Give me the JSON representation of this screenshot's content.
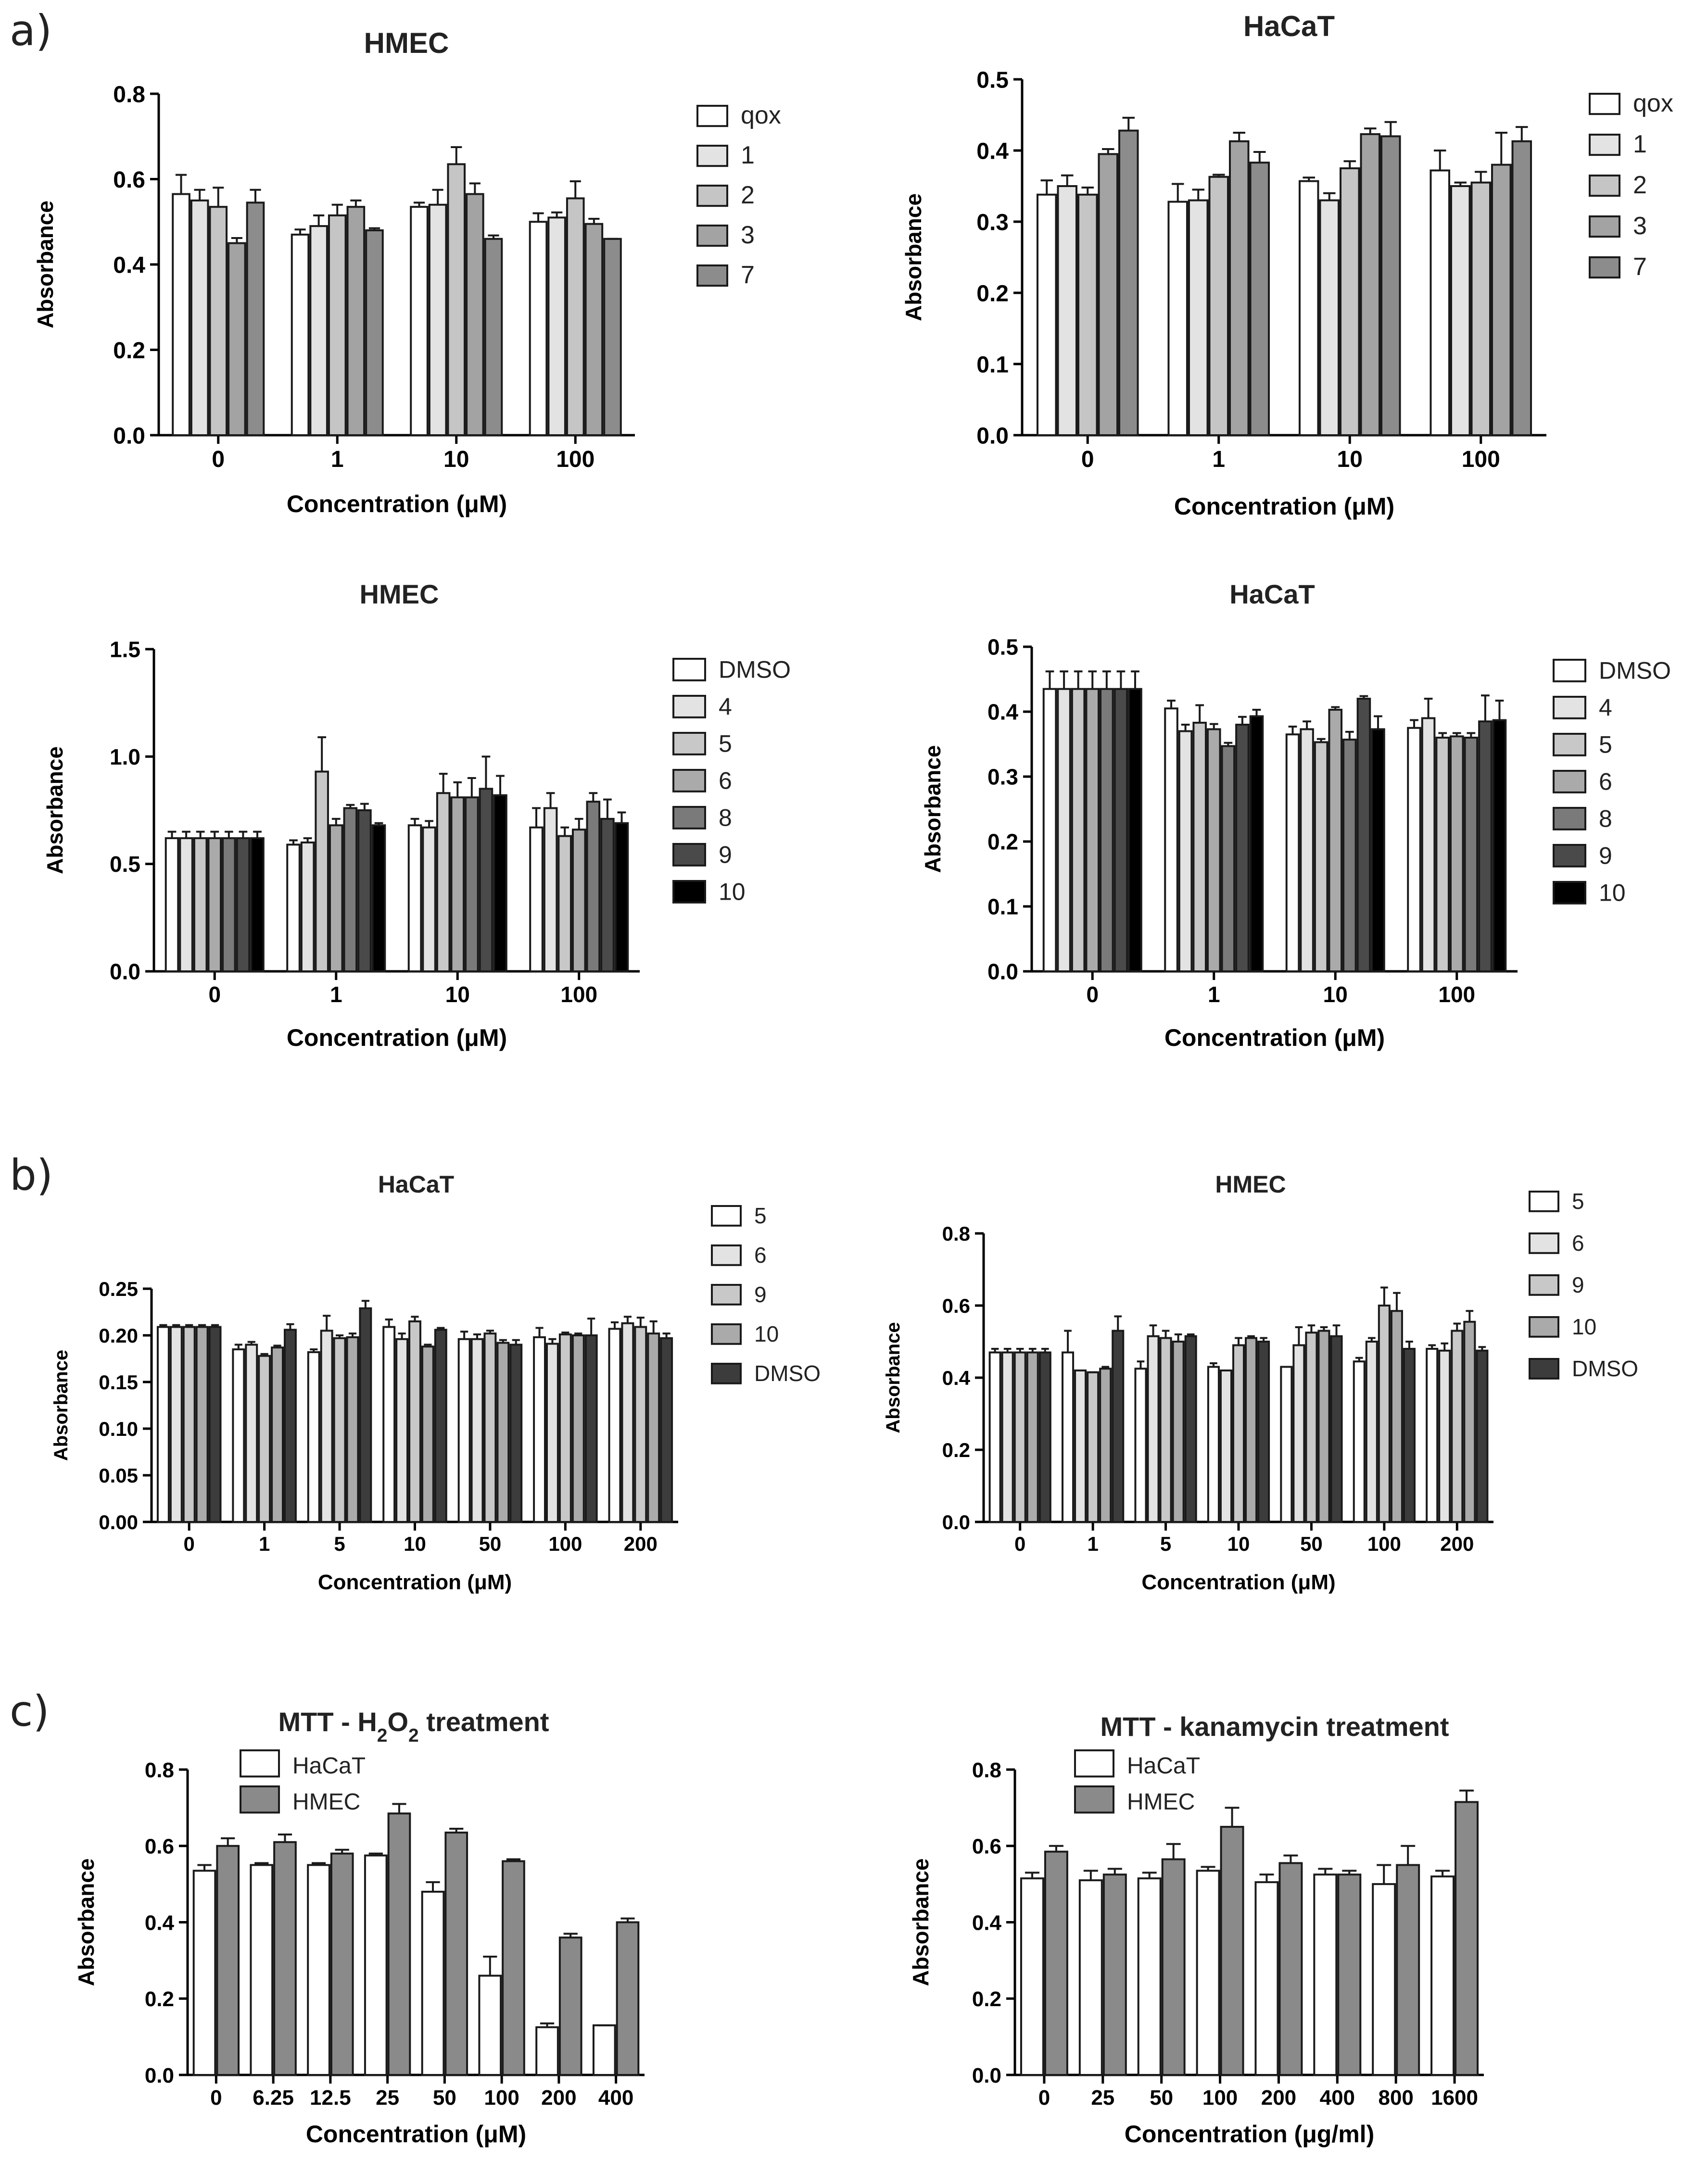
{
  "panel_labels": [
    "a)",
    "b)",
    "c)"
  ],
  "colors": {
    "qox": "#ffffff",
    "c1": "#e3e3e3",
    "c2": "#c5c5c5",
    "c3": "#a3a3a3",
    "c7": "#8c8c8c",
    "dmso": "#ffffff",
    "c4": "#e3e3e3",
    "c5": "#c8c8c8",
    "c6": "#aaaaaa",
    "c8": "#7a7a7a",
    "c9": "#4a4a4a",
    "c10": "#000000",
    "hacat": "#ffffff",
    "hmec": "#8a8a8a",
    "dark": "#3c3c3c"
  },
  "chart_data": [
    {
      "type": "bar",
      "title": "HMEC",
      "xlabel": "Concentration (μM)",
      "ylabel": "Absorbance",
      "categories": [
        "0",
        "1",
        "10",
        "100"
      ],
      "ylim": [
        0,
        0.8
      ],
      "yticks": [
        "0.0",
        "0.2",
        "0.4",
        "0.6",
        "0.8"
      ],
      "legend_position": "right",
      "series": [
        {
          "name": "qox",
          "color": "#ffffff",
          "values": [
            0.565,
            0.47,
            0.535,
            0.5
          ],
          "errors": [
            0.045,
            0.012,
            0.01,
            0.02
          ]
        },
        {
          "name": "1",
          "color": "#e3e3e3",
          "values": [
            0.55,
            0.49,
            0.54,
            0.51
          ],
          "errors": [
            0.025,
            0.025,
            0.035,
            0.012
          ]
        },
        {
          "name": "2",
          "color": "#c5c5c5",
          "values": [
            0.535,
            0.515,
            0.635,
            0.555
          ],
          "errors": [
            0.045,
            0.025,
            0.04,
            0.04
          ]
        },
        {
          "name": "3",
          "color": "#a3a3a3",
          "values": [
            0.45,
            0.535,
            0.565,
            0.495
          ],
          "errors": [
            0.012,
            0.015,
            0.025,
            0.012
          ]
        },
        {
          "name": "7",
          "color": "#8c8c8c",
          "values": [
            0.545,
            0.48,
            0.46,
            0.46
          ],
          "errors": [
            0.03,
            0.005,
            0.008,
            0
          ]
        }
      ]
    },
    {
      "type": "bar",
      "title": "HaCaT",
      "xlabel": "Concentration (μM)",
      "ylabel": "Absorbance",
      "categories": [
        "0",
        "1",
        "10",
        "100"
      ],
      "ylim": [
        0,
        0.5
      ],
      "yticks": [
        "0.0",
        "0.1",
        "0.2",
        "0.3",
        "0.4",
        "0.5"
      ],
      "legend_position": "right",
      "series": [
        {
          "name": "qox",
          "color": "#ffffff",
          "values": [
            0.338,
            0.328,
            0.357,
            0.372
          ],
          "errors": [
            0.02,
            0.025,
            0.005,
            0.028
          ]
        },
        {
          "name": "1",
          "color": "#e3e3e3",
          "values": [
            0.35,
            0.33,
            0.33,
            0.35
          ],
          "errors": [
            0.015,
            0.015,
            0.01,
            0.005
          ]
        },
        {
          "name": "2",
          "color": "#c5c5c5",
          "values": [
            0.338,
            0.363,
            0.375,
            0.355
          ],
          "errors": [
            0.01,
            0.003,
            0.01,
            0.015
          ]
        },
        {
          "name": "3",
          "color": "#a3a3a3",
          "values": [
            0.395,
            0.413,
            0.423,
            0.38
          ],
          "errors": [
            0.007,
            0.012,
            0.008,
            0.045
          ]
        },
        {
          "name": "7",
          "color": "#8c8c8c",
          "values": [
            0.428,
            0.383,
            0.42,
            0.413
          ],
          "errors": [
            0.018,
            0.015,
            0.02,
            0.02
          ]
        }
      ]
    },
    {
      "type": "bar",
      "title": "HMEC",
      "xlabel": "Concentration (μM)",
      "ylabel": "Absorbance",
      "categories": [
        "0",
        "1",
        "10",
        "100"
      ],
      "ylim": [
        0,
        1.5
      ],
      "yticks": [
        "0.0",
        "0.5",
        "1.0",
        "1.5"
      ],
      "legend_position": "right",
      "series": [
        {
          "name": "DMSO",
          "color": "#ffffff",
          "values": [
            0.62,
            0.59,
            0.68,
            0.67
          ],
          "errors": [
            0.03,
            0.02,
            0.03,
            0.09
          ]
        },
        {
          "name": "4",
          "color": "#e3e3e3",
          "values": [
            0.62,
            0.6,
            0.67,
            0.76
          ],
          "errors": [
            0.03,
            0.02,
            0.03,
            0.07
          ]
        },
        {
          "name": "5",
          "color": "#c8c8c8",
          "values": [
            0.62,
            0.93,
            0.83,
            0.63
          ],
          "errors": [
            0.03,
            0.16,
            0.09,
            0.04
          ]
        },
        {
          "name": "6",
          "color": "#aaaaaa",
          "values": [
            0.62,
            0.68,
            0.81,
            0.66
          ],
          "errors": [
            0.03,
            0.03,
            0.07,
            0.05
          ]
        },
        {
          "name": "8",
          "color": "#7a7a7a",
          "values": [
            0.62,
            0.76,
            0.81,
            0.79
          ],
          "errors": [
            0.03,
            0.015,
            0.09,
            0.04
          ]
        },
        {
          "name": "9",
          "color": "#4a4a4a",
          "values": [
            0.62,
            0.75,
            0.85,
            0.71
          ],
          "errors": [
            0.03,
            0.03,
            0.15,
            0.09
          ]
        },
        {
          "name": "10",
          "color": "#000000",
          "values": [
            0.62,
            0.68,
            0.82,
            0.69
          ],
          "errors": [
            0.03,
            0.01,
            0.09,
            0.05
          ]
        }
      ]
    },
    {
      "type": "bar",
      "title": "HaCaT",
      "xlabel": "Concentration (μM)",
      "ylabel": "Absorbance",
      "categories": [
        "0",
        "1",
        "10",
        "100"
      ],
      "ylim": [
        0,
        0.5
      ],
      "yticks": [
        "0.0",
        "0.1",
        "0.2",
        "0.3",
        "0.4",
        "0.5"
      ],
      "legend_position": "right",
      "series": [
        {
          "name": "DMSO",
          "color": "#ffffff",
          "values": [
            0.435,
            0.405,
            0.365,
            0.375
          ],
          "errors": [
            0.027,
            0.012,
            0.012,
            0.012
          ]
        },
        {
          "name": "4",
          "color": "#e3e3e3",
          "values": [
            0.435,
            0.37,
            0.373,
            0.39
          ],
          "errors": [
            0.027,
            0.01,
            0.012,
            0.03
          ]
        },
        {
          "name": "5",
          "color": "#c8c8c8",
          "values": [
            0.435,
            0.383,
            0.353,
            0.36
          ],
          "errors": [
            0.027,
            0.027,
            0.005,
            0.007
          ]
        },
        {
          "name": "6",
          "color": "#aaaaaa",
          "values": [
            0.435,
            0.373,
            0.403,
            0.362
          ],
          "errors": [
            0.027,
            0.008,
            0.004,
            0.005
          ]
        },
        {
          "name": "8",
          "color": "#7a7a7a",
          "values": [
            0.435,
            0.347,
            0.357,
            0.36
          ],
          "errors": [
            0.027,
            0.005,
            0.012,
            0.007
          ]
        },
        {
          "name": "9",
          "color": "#4a4a4a",
          "values": [
            0.435,
            0.38,
            0.42,
            0.385
          ],
          "errors": [
            0.027,
            0.012,
            0.004,
            0.04
          ]
        },
        {
          "name": "10",
          "color": "#000000",
          "values": [
            0.435,
            0.393,
            0.373,
            0.387
          ],
          "errors": [
            0.027,
            0.01,
            0.02,
            0.03
          ]
        }
      ]
    },
    {
      "type": "bar",
      "title": "HaCaT",
      "xlabel": "Concentration (μM)",
      "ylabel": "Absorbance",
      "categories": [
        "0",
        "1",
        "5",
        "10",
        "50",
        "100",
        "200"
      ],
      "ylim": [
        0,
        0.25
      ],
      "yticks": [
        "0.00",
        "0.05",
        "0.10",
        "0.15",
        "0.20",
        "0.25"
      ],
      "legend_position": "right",
      "series": [
        {
          "name": "5",
          "color": "#ffffff",
          "values": [
            0.209,
            0.185,
            0.182,
            0.209,
            0.196,
            0.198,
            0.207
          ],
          "errors": [
            0.002,
            0.005,
            0.003,
            0.008,
            0.008,
            0.01,
            0.007
          ]
        },
        {
          "name": "6",
          "color": "#e3e3e3",
          "values": [
            0.209,
            0.19,
            0.205,
            0.196,
            0.196,
            0.191,
            0.213
          ],
          "errors": [
            0.002,
            0.003,
            0.016,
            0.006,
            0.005,
            0.005,
            0.007
          ]
        },
        {
          "name": "9",
          "color": "#c8c8c8",
          "values": [
            0.209,
            0.178,
            0.197,
            0.215,
            0.202,
            0.201,
            0.209
          ],
          "errors": [
            0.002,
            0.002,
            0.003,
            0.005,
            0.003,
            0.002,
            0.01
          ]
        },
        {
          "name": "10",
          "color": "#aaaaaa",
          "values": [
            0.209,
            0.187,
            0.198,
            0.188,
            0.192,
            0.2,
            0.202
          ],
          "errors": [
            0.002,
            0.002,
            0.004,
            0.002,
            0.003,
            0.002,
            0.013
          ]
        },
        {
          "name": "DMSO",
          "color": "#3c3c3c",
          "values": [
            0.209,
            0.206,
            0.229,
            0.206,
            0.19,
            0.2,
            0.197
          ],
          "errors": [
            0.002,
            0.006,
            0.008,
            0.002,
            0.005,
            0.018,
            0.005
          ]
        }
      ]
    },
    {
      "type": "bar",
      "title": "HMEC",
      "xlabel": "Concentration (μM)",
      "ylabel": "Absorbance",
      "categories": [
        "0",
        "1",
        "5",
        "10",
        "50",
        "100",
        "200"
      ],
      "ylim": [
        0,
        0.8
      ],
      "yticks": [
        "0.0",
        "0.2",
        "0.4",
        "0.6",
        "0.8"
      ],
      "legend_position": "right",
      "series": [
        {
          "name": "5",
          "color": "#ffffff",
          "values": [
            0.47,
            0.47,
            0.425,
            0.43,
            0.43,
            0.445,
            0.48
          ],
          "errors": [
            0.01,
            0.06,
            0.02,
            0.01,
            0.0,
            0.01,
            0.01
          ]
        },
        {
          "name": "6",
          "color": "#e3e3e3",
          "values": [
            0.47,
            0.42,
            0.515,
            0.42,
            0.49,
            0.5,
            0.475
          ],
          "errors": [
            0.01,
            0.0,
            0.03,
            0.0,
            0.05,
            0.01,
            0.02
          ]
        },
        {
          "name": "9",
          "color": "#c8c8c8",
          "values": [
            0.47,
            0.415,
            0.51,
            0.49,
            0.525,
            0.6,
            0.53
          ],
          "errors": [
            0.01,
            0.0,
            0.02,
            0.02,
            0.02,
            0.05,
            0.02
          ]
        },
        {
          "name": "10",
          "color": "#aaaaaa",
          "values": [
            0.47,
            0.425,
            0.5,
            0.51,
            0.53,
            0.585,
            0.555
          ],
          "errors": [
            0.01,
            0.005,
            0.02,
            0.005,
            0.01,
            0.05,
            0.03
          ]
        },
        {
          "name": "DMSO",
          "color": "#3c3c3c",
          "values": [
            0.47,
            0.53,
            0.515,
            0.5,
            0.515,
            0.48,
            0.475
          ],
          "errors": [
            0.01,
            0.04,
            0.005,
            0.01,
            0.03,
            0.02,
            0.01
          ]
        }
      ]
    },
    {
      "type": "bar",
      "title": "MTT - H",
      "title_sub": "2",
      "title_mid": "O",
      "title_sub2": "2",
      "title_end": " treatment",
      "xlabel": "Concentration (μM)",
      "ylabel": "Absorbance",
      "categories": [
        "0",
        "6.25",
        "12.5",
        "25",
        "50",
        "100",
        "200",
        "400"
      ],
      "ylim": [
        0,
        0.8
      ],
      "yticks": [
        "0.0",
        "0.2",
        "0.4",
        "0.6",
        "0.8"
      ],
      "legend_position": "top-left",
      "series": [
        {
          "name": "HaCaT",
          "color": "#ffffff",
          "values": [
            0.535,
            0.55,
            0.55,
            0.575,
            0.48,
            0.26,
            0.125,
            0.13
          ],
          "errors": [
            0.015,
            0.005,
            0.005,
            0.005,
            0.025,
            0.05,
            0.01,
            0.0
          ]
        },
        {
          "name": "HMEC",
          "color": "#8a8a8a",
          "values": [
            0.6,
            0.61,
            0.58,
            0.685,
            0.635,
            0.56,
            0.36,
            0.4
          ],
          "errors": [
            0.02,
            0.02,
            0.01,
            0.025,
            0.01,
            0.005,
            0.01,
            0.01
          ]
        }
      ]
    },
    {
      "type": "bar",
      "title": "MTT - kanamycin treatment",
      "xlabel": "Concentration (μg/ml)",
      "ylabel": "Absorbance",
      "categories": [
        "0",
        "25",
        "50",
        "100",
        "200",
        "400",
        "800",
        "1600"
      ],
      "ylim": [
        0,
        0.8
      ],
      "yticks": [
        "0.0",
        "0.2",
        "0.4",
        "0.6",
        "0.8"
      ],
      "legend_position": "top-left",
      "series": [
        {
          "name": "HaCaT",
          "color": "#ffffff",
          "values": [
            0.515,
            0.51,
            0.515,
            0.535,
            0.505,
            0.525,
            0.5,
            0.52
          ],
          "errors": [
            0.015,
            0.025,
            0.015,
            0.01,
            0.02,
            0.015,
            0.05,
            0.015
          ]
        },
        {
          "name": "HMEC",
          "color": "#8a8a8a",
          "values": [
            0.585,
            0.525,
            0.565,
            0.65,
            0.555,
            0.525,
            0.55,
            0.715
          ],
          "errors": [
            0.015,
            0.015,
            0.04,
            0.05,
            0.02,
            0.01,
            0.05,
            0.03
          ]
        }
      ]
    }
  ]
}
